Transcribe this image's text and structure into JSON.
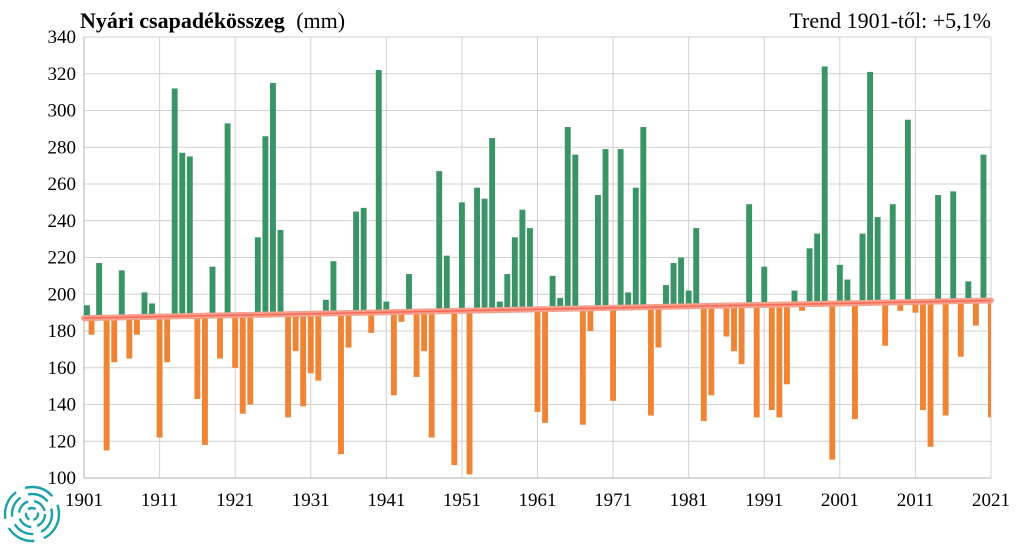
{
  "chart_data": {
    "type": "bar",
    "title": "Nyári csapadékösszeg",
    "title_unit": "(mm)",
    "trend_label": "Trend 1901-től: +5,1%",
    "xlabel": "",
    "ylabel": "",
    "ylim": [
      100,
      340
    ],
    "y_ticks": [
      "340",
      "320",
      "300",
      "280",
      "260",
      "240",
      "220",
      "200",
      "180",
      "160",
      "140",
      "120",
      "100"
    ],
    "x_tick_labels": [
      "1901",
      "1911",
      "1921",
      "1931",
      "1941",
      "1951",
      "1961",
      "1971",
      "1981",
      "1991",
      "2001",
      "2011",
      "2021"
    ],
    "grid": true,
    "colors": {
      "above": "#3a9466",
      "below": "#ee8434",
      "trend": "#f5a08c",
      "trend_band": "#ff3a2a",
      "grid": "#d0d0d0"
    },
    "trend_start": 187,
    "trend_end": 196.6,
    "series": [
      {
        "years": [
          1901,
          1902,
          1903,
          1904,
          1905,
          1906,
          1907,
          1908,
          1909,
          1910,
          1911,
          1912,
          1913,
          1914,
          1915,
          1916,
          1917,
          1918,
          1919,
          1920,
          1921,
          1922,
          1923,
          1924,
          1925,
          1926,
          1927,
          1928,
          1929,
          1930,
          1931,
          1932,
          1933,
          1934,
          1935,
          1936,
          1937,
          1938,
          1939,
          1940,
          1941,
          1942,
          1943,
          1944,
          1945,
          1946,
          1947,
          1948,
          1949,
          1950,
          1951,
          1952,
          1953,
          1954,
          1955,
          1956,
          1957,
          1958,
          1959,
          1960,
          1961,
          1962,
          1963,
          1964,
          1965,
          1966,
          1967,
          1968,
          1969,
          1970,
          1971,
          1972,
          1973,
          1974,
          1975,
          1976,
          1977,
          1978,
          1979,
          1980,
          1981,
          1982,
          1983,
          1984,
          1985,
          1986,
          1987,
          1988,
          1989,
          1990,
          1991,
          1992,
          1993,
          1994,
          1995,
          1996,
          1997,
          1998,
          1999,
          2000,
          2001,
          2002,
          2003,
          2004,
          2005,
          2006,
          2007,
          2008,
          2009,
          2010,
          2011,
          2012,
          2013,
          2014,
          2015,
          2016,
          2017,
          2018,
          2019,
          2020,
          2021
        ],
        "values": [
          194,
          178,
          217,
          115,
          163,
          213,
          165,
          178,
          201,
          195,
          122,
          163,
          312,
          277,
          275,
          143,
          118,
          215,
          165,
          293,
          160,
          135,
          140,
          231,
          286,
          315,
          235,
          133,
          169,
          139,
          157,
          153,
          197,
          218,
          113,
          171,
          245,
          247,
          179,
          322,
          196,
          145,
          185,
          211,
          155,
          169,
          122,
          267,
          221,
          107,
          250,
          102,
          258,
          252,
          285,
          196,
          211,
          231,
          246,
          236,
          136,
          130,
          210,
          198,
          291,
          276,
          129,
          180,
          254,
          279,
          142,
          279,
          201,
          258,
          291,
          134,
          171,
          205,
          217,
          220,
          202,
          236,
          131,
          145,
          195,
          177,
          169,
          162,
          249,
          133,
          215,
          137,
          133,
          151,
          202,
          191,
          225,
          233,
          324,
          110,
          216,
          208,
          132,
          233,
          321,
          242,
          172,
          249,
          191,
          295,
          190,
          137,
          117,
          254,
          134,
          256,
          166,
          207,
          183,
          276,
          133
        ]
      }
    ]
  }
}
